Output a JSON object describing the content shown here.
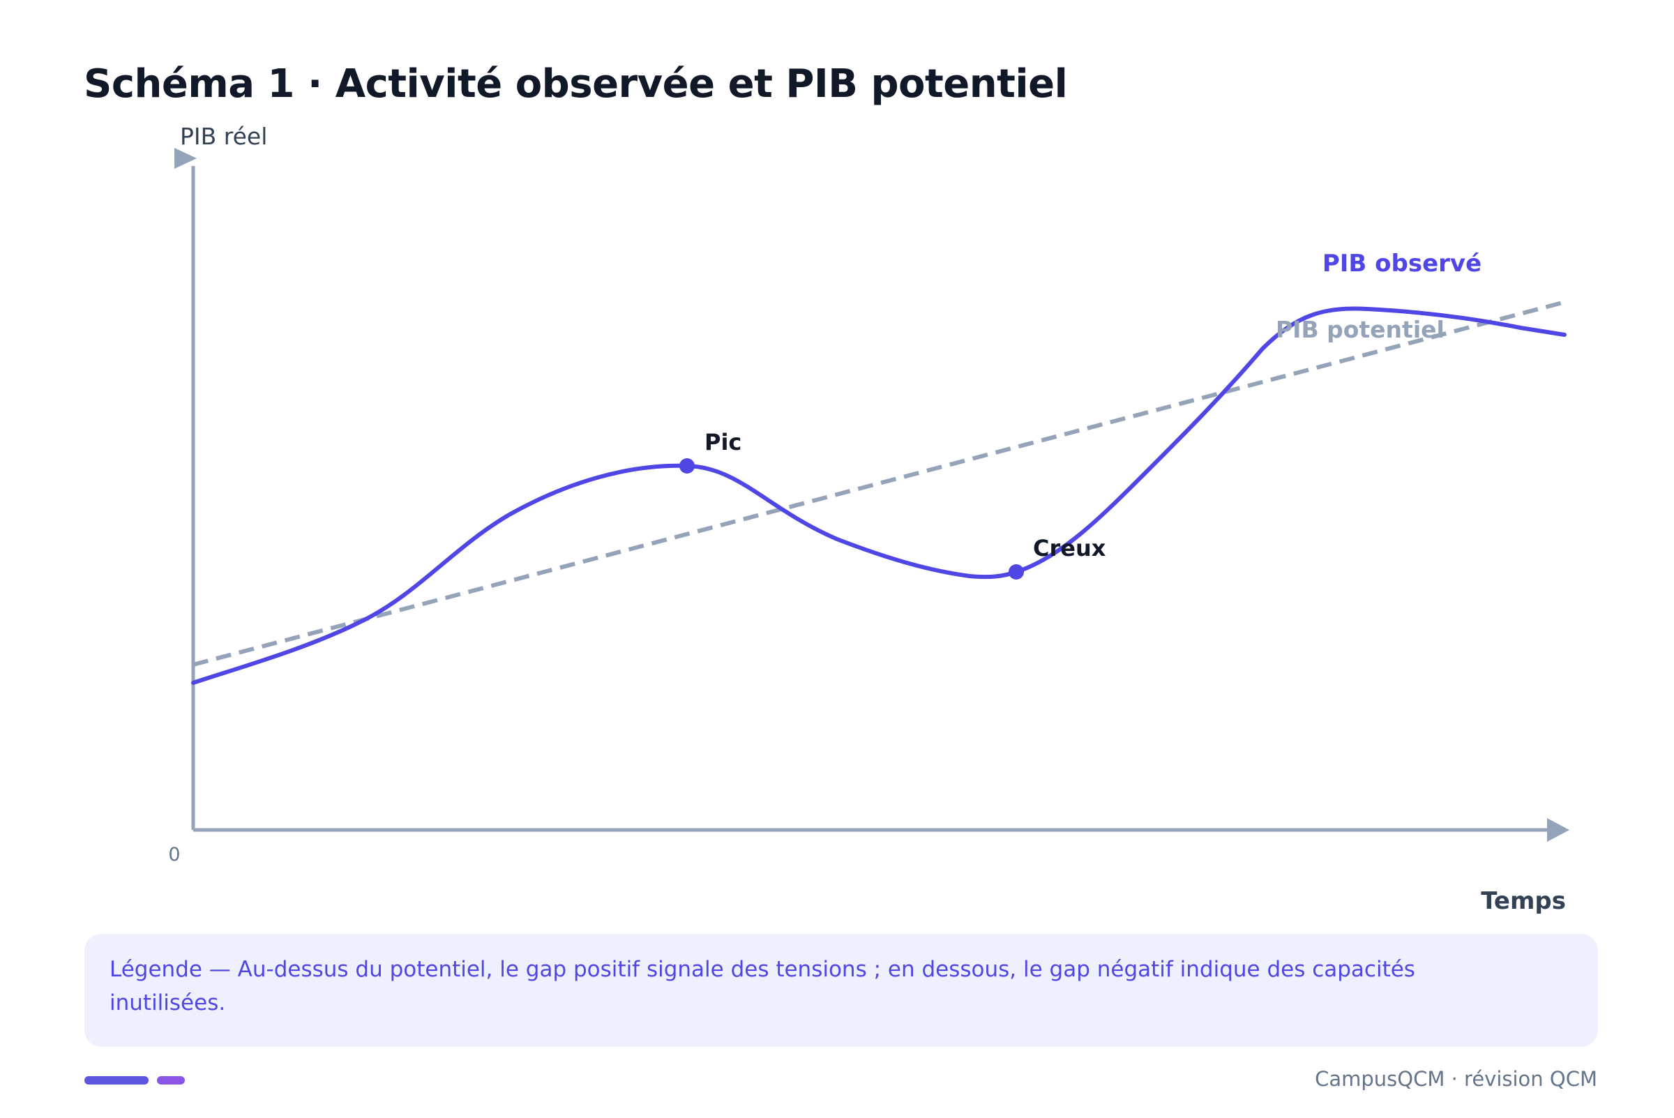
{
  "title": "Schéma 1 · Activité observée et PIB potentiel",
  "axes": {
    "y_label": "PIB réel",
    "x_label": "Temps",
    "origin_label": "0"
  },
  "curves": {
    "observed": {
      "label": "PIB observé",
      "color": "#4f46e5"
    },
    "potential": {
      "label": "PIB potentiel",
      "color": "#94a3b8"
    }
  },
  "points": [
    {
      "label": "Pic"
    },
    {
      "label": "Creux"
    }
  ],
  "legend": {
    "text": "Légende — Au-dessus du potentiel, le gap positif signale des tensions ; en dessous, le gap négatif indique des capacités inutilisées."
  },
  "footer": {
    "brand": "CampusQCM · révision QCM"
  }
}
